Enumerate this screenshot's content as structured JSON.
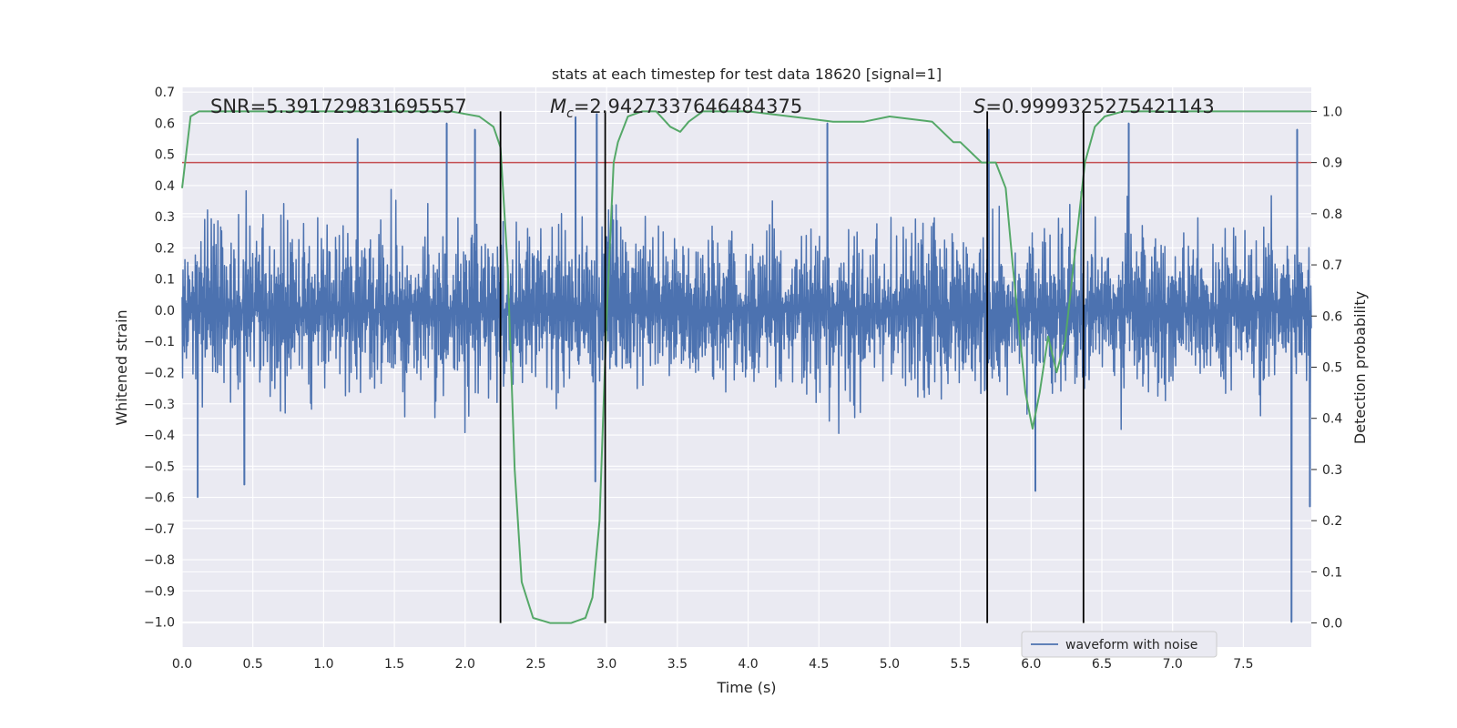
{
  "chart_data": {
    "type": "line",
    "title": "stats at each timestep for test data 18620 [signal=1]",
    "xlabel": "Time (s)",
    "ylabel": "Whitened strain",
    "y2label": "Detection probability",
    "xlim": [
      0.0,
      7.98
    ],
    "ylim": [
      -1.08,
      0.715
    ],
    "y2lim": [
      -0.047,
      1.047
    ],
    "x_ticks": [
      "0.0",
      "0.5",
      "1.0",
      "1.5",
      "2.0",
      "2.5",
      "3.0",
      "3.5",
      "4.0",
      "4.5",
      "5.0",
      "5.5",
      "6.0",
      "6.5",
      "7.0",
      "7.5"
    ],
    "y_ticks": [
      "0.7",
      "0.6",
      "0.5",
      "0.4",
      "0.3",
      "0.2",
      "0.1",
      "0.0",
      "−0.1",
      "−0.2",
      "−0.3",
      "−0.4",
      "−0.5",
      "−0.6",
      "−0.7",
      "−0.8",
      "−0.9",
      "−1.0"
    ],
    "y2_ticks": [
      "1.0",
      "0.9",
      "0.8",
      "0.7",
      "0.6",
      "0.5",
      "0.4",
      "0.3",
      "0.2",
      "0.1",
      "0.0"
    ],
    "grid": true,
    "legend": {
      "position": "bottom-right",
      "entries": [
        "waveform with noise"
      ]
    },
    "annotations": {
      "snr": "SNR=5.391729831695557",
      "mc_symbol": "M",
      "mc_subscript": "c",
      "mc_value": "=2.9427337646484375",
      "s_symbol": "S",
      "s_value": "=0.9999325275421143"
    },
    "threshold": {
      "y2": 0.9,
      "color": "#c44e52"
    },
    "vlines": {
      "x": [
        2.25,
        2.99,
        5.69,
        6.37
      ],
      "y2_range": [
        0.0,
        1.0
      ],
      "color": "#000000"
    },
    "waveform": {
      "name": "waveform with noise",
      "color": "#4c72b0",
      "x_range": [
        0.0,
        7.98
      ],
      "sample_rate_hz": 2048,
      "typical_envelope": [
        -0.32,
        0.32
      ],
      "spikes": [
        {
          "x": 0.11,
          "y": -0.6
        },
        {
          "x": 0.44,
          "y": -0.56
        },
        {
          "x": 1.24,
          "y": 0.55
        },
        {
          "x": 1.87,
          "y": 0.6
        },
        {
          "x": 2.07,
          "y": 0.58
        },
        {
          "x": 2.78,
          "y": 0.62
        },
        {
          "x": 2.93,
          "y": 0.63
        },
        {
          "x": 2.92,
          "y": -0.55
        },
        {
          "x": 4.56,
          "y": 0.6
        },
        {
          "x": 5.7,
          "y": 0.58
        },
        {
          "x": 6.03,
          "y": -0.58
        },
        {
          "x": 6.69,
          "y": 0.6
        },
        {
          "x": 7.84,
          "y": -1.0
        },
        {
          "x": 7.97,
          "y": -0.63
        },
        {
          "x": 7.88,
          "y": 0.58
        }
      ]
    },
    "detection_probability": {
      "color": "#55a868",
      "x": [
        0.0,
        0.06,
        0.12,
        0.3,
        0.6,
        1.0,
        1.5,
        1.9,
        2.1,
        2.2,
        2.25,
        2.3,
        2.35,
        2.4,
        2.48,
        2.6,
        2.75,
        2.85,
        2.9,
        2.95,
        3.0,
        3.05,
        3.08,
        3.15,
        3.25,
        3.35,
        3.45,
        3.52,
        3.58,
        3.68,
        3.8,
        4.0,
        4.3,
        4.6,
        4.72,
        4.82,
        5.0,
        5.3,
        5.45,
        5.5,
        5.65,
        5.75,
        5.82,
        5.87,
        5.96,
        6.01,
        6.06,
        6.12,
        6.18,
        6.24,
        6.32,
        6.38,
        6.45,
        6.52,
        6.65,
        6.85,
        7.05,
        7.22,
        7.35,
        7.6,
        7.98
      ],
      "y": [
        0.85,
        0.99,
        1.0,
        1.0,
        1.0,
        1.0,
        1.0,
        1.0,
        0.99,
        0.97,
        0.93,
        0.7,
        0.3,
        0.08,
        0.01,
        0.0,
        0.0,
        0.01,
        0.05,
        0.2,
        0.6,
        0.9,
        0.94,
        0.99,
        1.0,
        1.0,
        0.97,
        0.96,
        0.98,
        1.0,
        1.0,
        1.0,
        0.99,
        0.98,
        0.98,
        0.98,
        0.99,
        0.98,
        0.94,
        0.94,
        0.9,
        0.9,
        0.85,
        0.7,
        0.45,
        0.38,
        0.45,
        0.56,
        0.49,
        0.55,
        0.75,
        0.9,
        0.97,
        0.99,
        1.0,
        1.0,
        1.0,
        1.0,
        1.0,
        1.0,
        1.0
      ]
    }
  }
}
